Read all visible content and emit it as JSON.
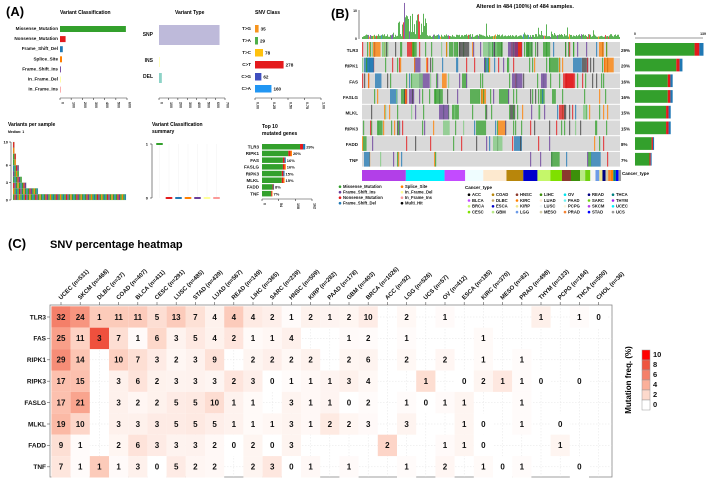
{
  "panel_labels": {
    "a": "(A)",
    "b": "(B)",
    "c": "(C)"
  },
  "panel_a": {
    "variant_classification": {
      "title": "Variant Classification",
      "categories": [
        "Missense_Mutation",
        "Nonsense_Mutation",
        "Frame_Shift_Del",
        "Splice_Site",
        "Frame_Shift_Ins",
        "In_Frame_Del",
        "In_Frame_Ins"
      ],
      "values": [
        590,
        50,
        25,
        18,
        8,
        3,
        3
      ],
      "colors": [
        "#33A02C",
        "#E31A1C",
        "#1F78B4",
        "#FF7F00",
        "#6A3D9A",
        "#FFFF99",
        "#FB9A99"
      ],
      "ticks": [
        "0",
        "100",
        "200",
        "300",
        "400",
        "500",
        "600"
      ],
      "xlim": [
        0,
        600
      ]
    },
    "variant_type": {
      "title": "Variant Type",
      "categories": [
        "SNP",
        "INS",
        "DEL"
      ],
      "values": [
        642,
        2,
        30
      ],
      "colors": [
        "#BEBADA",
        "#FFFFB3",
        "#8DD3C7"
      ],
      "ticks": [
        "0",
        "100",
        "200",
        "300",
        "400",
        "500",
        "600",
        "700"
      ],
      "xlim": [
        0,
        700
      ]
    },
    "snv_class": {
      "title": "SNV Class",
      "categories": [
        "T>G",
        "T>A",
        "T>C",
        "C>T",
        "C>G",
        "C>A"
      ],
      "values": [
        35,
        29,
        78,
        278,
        62,
        160
      ],
      "colors": [
        "#F7941D",
        "#4DAF4A",
        "#FFC20E",
        "#E41A1C",
        "#3F4FBF",
        "#2196F3"
      ],
      "ticks": [
        "0.00",
        "0.25",
        "0.50",
        "0.75",
        "1.00"
      ]
    },
    "variants_per_sample": {
      "title": "Variants per sample",
      "subtitle": "Median: 1",
      "ticks": [
        "0",
        "3",
        "6",
        "10"
      ],
      "head_values": [
        10,
        8,
        6,
        6,
        4,
        4,
        3,
        3,
        3,
        2,
        2,
        2,
        2,
        2,
        2,
        2,
        2
      ],
      "tail_value": 1,
      "tail_count": 60
    },
    "vc_summary": {
      "title_line1": "Variant Classification",
      "title_line2": "summary",
      "ticks": [
        "0",
        "1"
      ],
      "medians": [
        1,
        0,
        0,
        0,
        0,
        0,
        0
      ]
    },
    "top_genes": {
      "title_line1": "Top 10",
      "title_line2": "mutated genes",
      "genes": [
        "TLR3",
        "RIPK1",
        "FAS",
        "FASLG",
        "RIPK3",
        "MLKL",
        "FADD",
        "TNF"
      ],
      "pct": [
        "29%",
        "20%",
        "16%",
        "16%",
        "15%",
        "15%",
        "8%",
        "7%"
      ],
      "counts": [
        140,
        97,
        77,
        77,
        73,
        73,
        39,
        34
      ],
      "ticks": [
        "0",
        "54",
        "108",
        "162"
      ],
      "xlim": [
        0,
        162
      ]
    }
  },
  "panel_b": {
    "title": "Altered in 484 (100%) of 484 samples.",
    "top_ticks": [
      "0",
      "10"
    ],
    "right_ticks": [
      "0",
      "139"
    ],
    "right_max": 139,
    "genes": [
      "TLR3",
      "RIPK1",
      "FAS",
      "FASLG",
      "MLKL",
      "RIPK3",
      "FADD",
      "TNF"
    ],
    "pct": [
      "29%",
      "20%",
      "16%",
      "16%",
      "15%",
      "15%",
      "8%",
      "7%"
    ],
    "counts": [
      140,
      97,
      77,
      77,
      73,
      73,
      39,
      34
    ],
    "cancer_type_label": "Cancer_type",
    "cancer_type_segments": [
      {
        "type": "SKCM",
        "frac": 0.17,
        "color": "#B23FE8"
      },
      {
        "type": "UCEC",
        "frac": 0.15,
        "color": "#00F0FF"
      },
      {
        "type": "BLCA",
        "frac": 0.08,
        "color": "#C34BFF"
      },
      {
        "type": "OV",
        "frac": 0.07,
        "color": "#EFFDFF"
      },
      {
        "type": "LUAD",
        "frac": 0.09,
        "color": "#FDE9CF"
      },
      {
        "type": "COAD",
        "frac": 0.065,
        "color": "#B8860B"
      },
      {
        "type": "ESCA",
        "frac": 0.055,
        "color": "#0000CC"
      },
      {
        "type": "BRCA",
        "frac": 0.05,
        "color": "#C5F76A"
      },
      {
        "type": "CESC",
        "frac": 0.045,
        "color": "#7FE000"
      },
      {
        "type": "HNSC",
        "frac": 0.035,
        "color": "#8B3A2E"
      },
      {
        "type": "LIHC",
        "frac": 0.035,
        "color": "#3C8F0A"
      },
      {
        "type": "GBM",
        "frac": 0.02,
        "color": "#B8E986"
      },
      {
        "type": "SARC",
        "frac": 0.02,
        "color": "#6ED10F"
      },
      {
        "type": "PAAD",
        "frac": 0.02,
        "color": "#F5F5F5"
      },
      {
        "type": "LGG",
        "frac": 0.015,
        "color": "#6C9BE8"
      },
      {
        "type": "KIRP",
        "frac": 0.012,
        "color": "#F0E68C"
      },
      {
        "type": "READ",
        "frac": 0.012,
        "color": "#000080"
      },
      {
        "type": "MESO",
        "frac": 0.01,
        "color": "#D2C9A5"
      },
      {
        "type": "PRAD",
        "frac": 0.01,
        "color": "#F58231"
      },
      {
        "type": "KIRC",
        "frac": 0.01,
        "color": "#FF7F00"
      },
      {
        "type": "THCA",
        "frac": 0.01,
        "color": "#008080"
      },
      {
        "type": "STAD",
        "frac": 0.01,
        "color": "#0000FF"
      },
      {
        "type": "UCS",
        "frac": 0.01,
        "color": "#999999"
      }
    ],
    "mutation_legend": [
      {
        "label": "Missense_Mutation",
        "color": "#33A02C"
      },
      {
        "label": "Frame_Shift_Ins",
        "color": "#6A3D9A"
      },
      {
        "label": "Nonsense_Mutation",
        "color": "#E31A1C"
      },
      {
        "label": "Frame_Shift_Del",
        "color": "#1F78B4"
      },
      {
        "label": "Splice_Site",
        "color": "#FF7F00"
      },
      {
        "label": "In_Frame_Del",
        "color": "#FFFF99"
      },
      {
        "label": "In_Frame_Ins",
        "color": "#FB9A99"
      },
      {
        "label": "Multi_Hit",
        "color": "#000000"
      }
    ],
    "cancer_legend_title": "Cancer_type",
    "cancer_legend": [
      {
        "label": "ACC",
        "color": "#000000"
      },
      {
        "label": "BLCA",
        "color": "#C34BFF"
      },
      {
        "label": "BRCA",
        "color": "#C5F76A"
      },
      {
        "label": "CESC",
        "color": "#7FE000"
      },
      {
        "label": "COAD",
        "color": "#B8860B"
      },
      {
        "label": "DLBC",
        "color": "#C8A96E"
      },
      {
        "label": "ESCA",
        "color": "#0000CC"
      },
      {
        "label": "GBM",
        "color": "#B8E986"
      },
      {
        "label": "HNSC",
        "color": "#8B3A2E"
      },
      {
        "label": "KIRC",
        "color": "#FF7F00"
      },
      {
        "label": "KIRP",
        "color": "#F0E68C"
      },
      {
        "label": "LGG",
        "color": "#6C9BE8"
      },
      {
        "label": "LIHC",
        "color": "#3C8F0A"
      },
      {
        "label": "LUAD",
        "color": "#FDE9CF"
      },
      {
        "label": "LUSC",
        "color": "#EEF7F7"
      },
      {
        "label": "MESO",
        "color": "#D2C9A5"
      },
      {
        "label": "OV",
        "color": "#00E5EE"
      },
      {
        "label": "PAAD",
        "color": "#6FF0F0"
      },
      {
        "label": "PCPG",
        "color": "#FFF5DC"
      },
      {
        "label": "PRAD",
        "color": "#F58231"
      },
      {
        "label": "READ",
        "color": "#000080"
      },
      {
        "label": "SARC",
        "color": "#6ED10F"
      },
      {
        "label": "SKCM",
        "color": "#B23FE8"
      },
      {
        "label": "STAD",
        "color": "#0000FF"
      },
      {
        "label": "THCA",
        "color": "#008080"
      },
      {
        "label": "THYM",
        "color": "#A020F0"
      },
      {
        "label": "UCEC",
        "color": "#00F0FF"
      },
      {
        "label": "UCS",
        "color": "#999999"
      }
    ]
  },
  "chart_data": {
    "type": "heatmap",
    "title": "SNV percentage heatmap",
    "legend_title": "Mutation freq. (%)",
    "legend_ticks": [
      "10",
      "8",
      "6",
      "4",
      "2",
      "0"
    ],
    "color_range": [
      0,
      10
    ],
    "columns": [
      "UCEC",
      "SKCM",
      "DLBC",
      "COAD",
      "BLCA",
      "CESC",
      "LUSC",
      "STAD",
      "LUAD",
      "READ",
      "LIHC",
      "SARC",
      "HNSC",
      "KIRP",
      "PAAD",
      "GBM",
      "BRCA",
      "ACC",
      "LGG",
      "UCS",
      "OV",
      "ESCA",
      "KIRC",
      "MESO",
      "PRAD",
      "THYM",
      "PCPG",
      "THCA",
      "CHOL"
    ],
    "column_n": [
      531,
      468,
      37,
      407,
      411,
      291,
      485,
      439,
      567,
      149,
      365,
      239,
      509,
      282,
      178,
      403,
      1026,
      92,
      526,
      57,
      412,
      185,
      370,
      82,
      498,
      123,
      184,
      500,
      36
    ],
    "rows": [
      {
        "gene": "TLR3",
        "counts": [
          32,
          24,
          1,
          11,
          11,
          5,
          13,
          7,
          4,
          4,
          4,
          2,
          1,
          2,
          1,
          2,
          10,
          null,
          2,
          null,
          1,
          null,
          null,
          null,
          null,
          1,
          null,
          1,
          0
        ]
      },
      {
        "gene": "FAS",
        "counts": [
          25,
          11,
          3,
          7,
          1,
          6,
          3,
          5,
          4,
          2,
          1,
          1,
          4,
          null,
          null,
          1,
          2,
          null,
          1,
          null,
          null,
          null,
          1,
          null,
          null,
          null,
          null,
          null,
          null
        ]
      },
      {
        "gene": "RIPK1",
        "counts": [
          29,
          14,
          null,
          10,
          7,
          3,
          2,
          3,
          9,
          null,
          2,
          2,
          2,
          2,
          null,
          2,
          6,
          null,
          2,
          null,
          2,
          null,
          1,
          null,
          1,
          null,
          null,
          null,
          null
        ]
      },
      {
        "gene": "RIPK3",
        "counts": [
          17,
          15,
          null,
          3,
          6,
          2,
          3,
          3,
          3,
          2,
          3,
          0,
          1,
          1,
          1,
          3,
          4,
          null,
          null,
          1,
          null,
          0,
          2,
          1,
          1,
          0,
          null,
          0,
          null
        ]
      },
      {
        "gene": "FASLG",
        "counts": [
          17,
          21,
          null,
          3,
          2,
          2,
          5,
          5,
          10,
          1,
          1,
          null,
          3,
          1,
          1,
          0,
          2,
          null,
          1,
          0,
          1,
          1,
          null,
          null,
          1,
          null,
          null,
          null,
          null
        ]
      },
      {
        "gene": "MLKL",
        "counts": [
          19,
          10,
          null,
          3,
          3,
          3,
          5,
          5,
          5,
          1,
          1,
          1,
          3,
          1,
          2,
          2,
          3,
          null,
          3,
          null,
          null,
          1,
          0,
          null,
          1,
          null,
          0,
          null,
          null
        ]
      },
      {
        "gene": "FADD",
        "counts": [
          9,
          1,
          null,
          2,
          6,
          3,
          3,
          3,
          2,
          0,
          2,
          0,
          3,
          null,
          null,
          null,
          null,
          2,
          null,
          null,
          1,
          1,
          0,
          null,
          null,
          null,
          1,
          null,
          null
        ]
      },
      {
        "gene": "TNF",
        "counts": [
          7,
          1,
          1,
          1,
          3,
          0,
          5,
          2,
          2,
          null,
          2,
          3,
          0,
          1,
          null,
          1,
          null,
          null,
          1,
          null,
          2,
          null,
          1,
          0,
          1,
          null,
          null,
          0,
          null
        ]
      }
    ]
  }
}
